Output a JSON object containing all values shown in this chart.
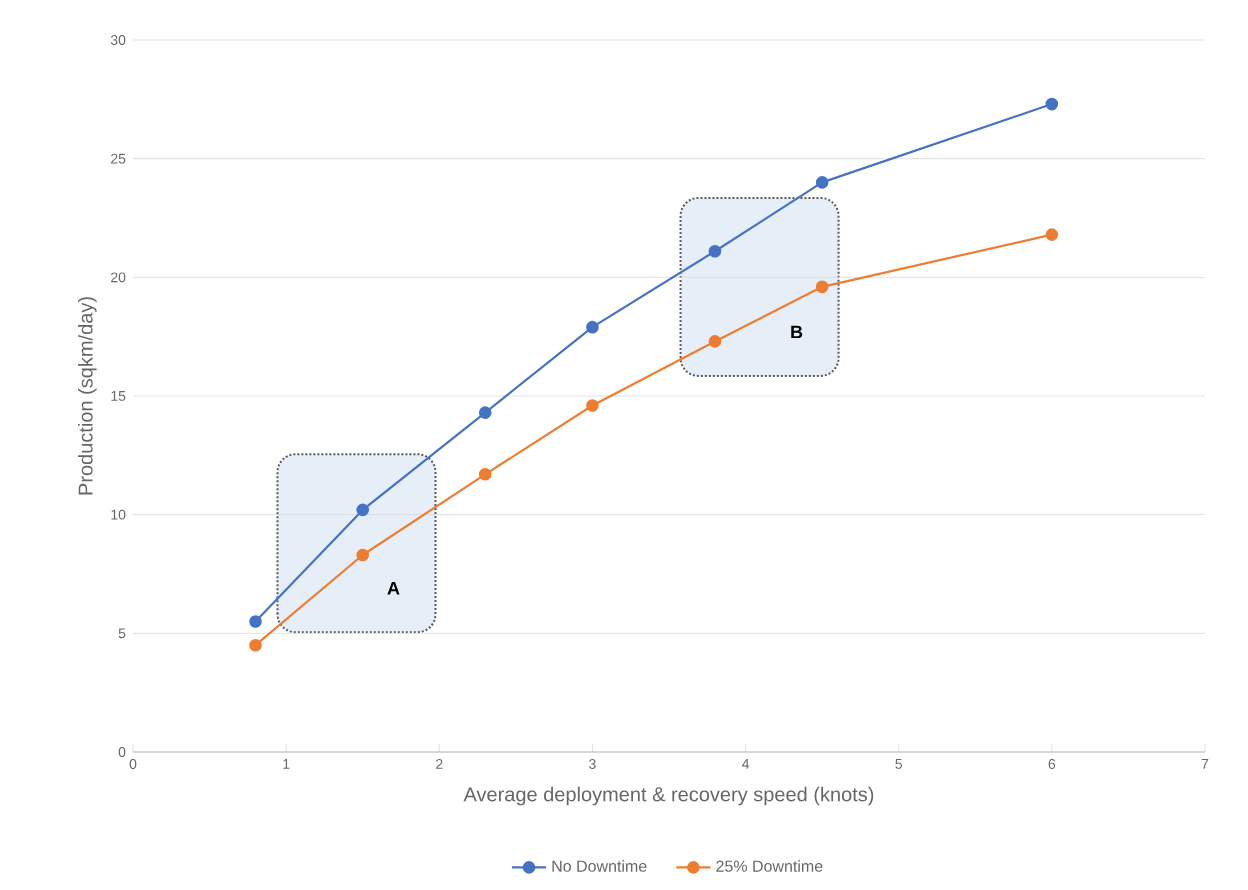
{
  "chart_data": {
    "type": "line",
    "xlabel": "Average deployment & recovery speed (knots)",
    "ylabel": "Production (sqkm/day)",
    "x": [
      0.8,
      1.5,
      2.3,
      3,
      3.8,
      4.5,
      6
    ],
    "series": [
      {
        "name": "No Downtime",
        "color": "#4472c4",
        "values": [
          5.5,
          10.2,
          14.3,
          17.9,
          21.1,
          24.0,
          27.3
        ]
      },
      {
        "name": "25% Downtime",
        "color": "#ed7d31",
        "values": [
          4.5,
          8.3,
          11.7,
          14.6,
          17.3,
          19.6,
          21.8
        ]
      }
    ],
    "xlim": [
      0,
      7
    ],
    "ylim": [
      0,
      30
    ],
    "xticks": [
      0,
      1,
      2,
      3,
      4,
      5,
      6,
      7
    ],
    "yticks": [
      0,
      5,
      10,
      15,
      20,
      25,
      30
    ],
    "grid": "y",
    "legend": "bottom",
    "marker": "circle",
    "line_style": "solid",
    "annotations": [
      "A",
      "B"
    ]
  }
}
